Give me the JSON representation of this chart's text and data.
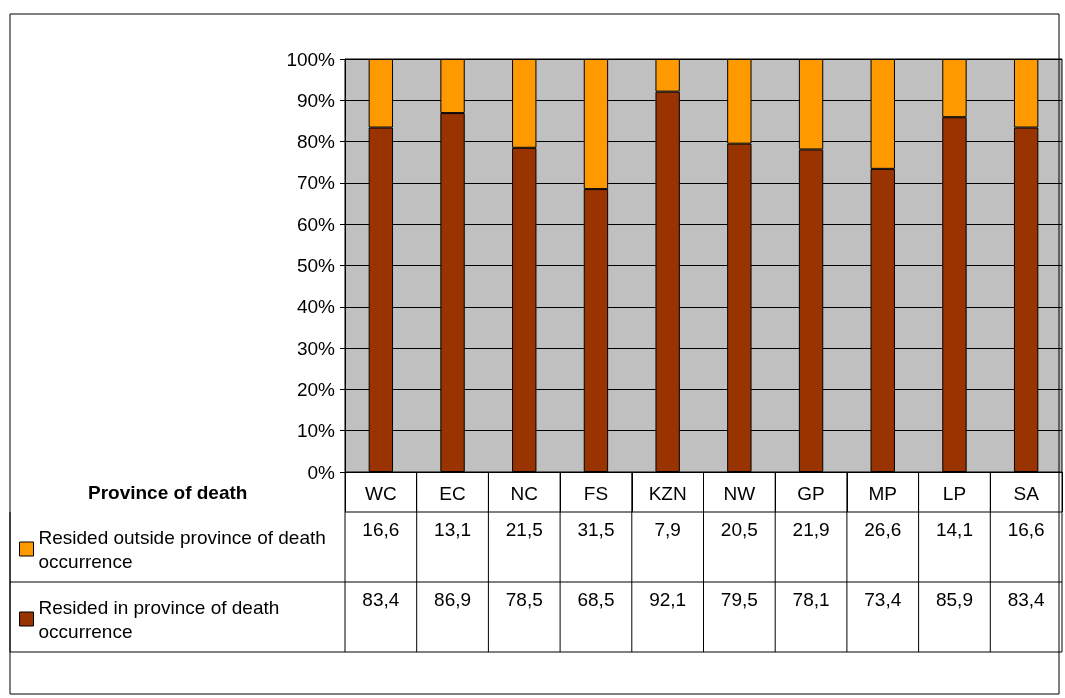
{
  "chart_data": {
    "type": "bar",
    "stacked": true,
    "xlabel": "Province of death",
    "categories": [
      "WC",
      "EC",
      "NC",
      "FS",
      "KZN",
      "NW",
      "GP",
      "MP",
      "LP",
      "SA"
    ],
    "series": [
      {
        "name": "Resided in province of death occurrence",
        "color": "#993300",
        "values": [
          83.4,
          86.9,
          78.5,
          68.5,
          92.1,
          79.5,
          78.1,
          73.4,
          85.9,
          83.4
        ],
        "value_labels": [
          "83,4",
          "86,9",
          "78,5",
          "68,5",
          "92,1",
          "79,5",
          "78,1",
          "73,4",
          "85,9",
          "83,4"
        ]
      },
      {
        "name": "Resided outside province of death occurrence",
        "color": "#ff9900",
        "values": [
          16.6,
          13.1,
          21.5,
          31.5,
          7.9,
          20.5,
          21.9,
          26.6,
          14.1,
          16.6
        ],
        "value_labels": [
          "16,6",
          "13,1",
          "21,5",
          "31,5",
          "7,9",
          "20,5",
          "21,9",
          "26,6",
          "14,1",
          "16,6"
        ]
      }
    ],
    "ylim": [
      0,
      100
    ],
    "yticks": [
      {
        "value": 0,
        "label": "0%"
      },
      {
        "value": 10,
        "label": "10%"
      },
      {
        "value": 20,
        "label": "20%"
      },
      {
        "value": 30,
        "label": "30%"
      },
      {
        "value": 40,
        "label": "40%"
      },
      {
        "value": 50,
        "label": "50%"
      },
      {
        "value": 60,
        "label": "60%"
      },
      {
        "value": 70,
        "label": "70%"
      },
      {
        "value": 80,
        "label": "80%"
      },
      {
        "value": 90,
        "label": "90%"
      },
      {
        "value": 100,
        "label": "100%"
      }
    ],
    "grid": "y",
    "legend": "bottom left"
  }
}
